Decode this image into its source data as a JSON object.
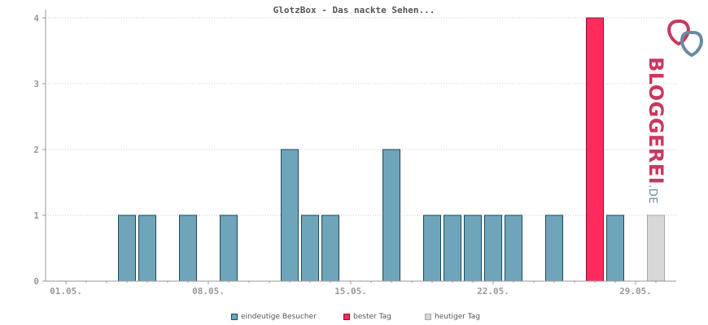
{
  "colors": {
    "visitors": "#6ea5bb",
    "visitors_stroke": "#1f4858",
    "best_day": "#ff2b5c",
    "best_day_stroke": "#8c1031",
    "today": "#d7d7d7",
    "today_stroke": "#a8a8a8",
    "axis": "#999999",
    "grid": "#cccccc"
  },
  "chart_data": {
    "type": "bar",
    "title": "GlotzBox - Das nackte Sehen...",
    "x_ticks": [
      "01.05.",
      "08.05.",
      "15.05.",
      "22.05.",
      "29.05."
    ],
    "y_ticks": [
      "0",
      "1",
      "2",
      "3",
      "4"
    ],
    "ylim": [
      0,
      4
    ],
    "grid": true,
    "days": [
      "01.05.",
      "02.05.",
      "03.05.",
      "04.05.",
      "05.05.",
      "06.05.",
      "07.05.",
      "08.05.",
      "09.05.",
      "10.05.",
      "11.05.",
      "12.05.",
      "13.05.",
      "14.05.",
      "15.05.",
      "16.05.",
      "17.05.",
      "18.05.",
      "19.05.",
      "20.05.",
      "21.05.",
      "22.05.",
      "23.05.",
      "24.05.",
      "25.05.",
      "26.05.",
      "27.05.",
      "28.05.",
      "29.05.",
      "30.05."
    ],
    "values": [
      0,
      0,
      0,
      1,
      1,
      0,
      1,
      0,
      1,
      0,
      0,
      2,
      1,
      1,
      0,
      0,
      2,
      0,
      1,
      1,
      1,
      1,
      1,
      0,
      1,
      0,
      4,
      1,
      0,
      1
    ],
    "best_day_index": 26,
    "today_index": 29,
    "legend": [
      "eindeutige Besucher",
      "bester Tag",
      "heutiger Tag"
    ],
    "legend_position": "bottom-center"
  },
  "logo": {
    "main": "BLOGGEREI",
    "suffix": ".DE"
  }
}
